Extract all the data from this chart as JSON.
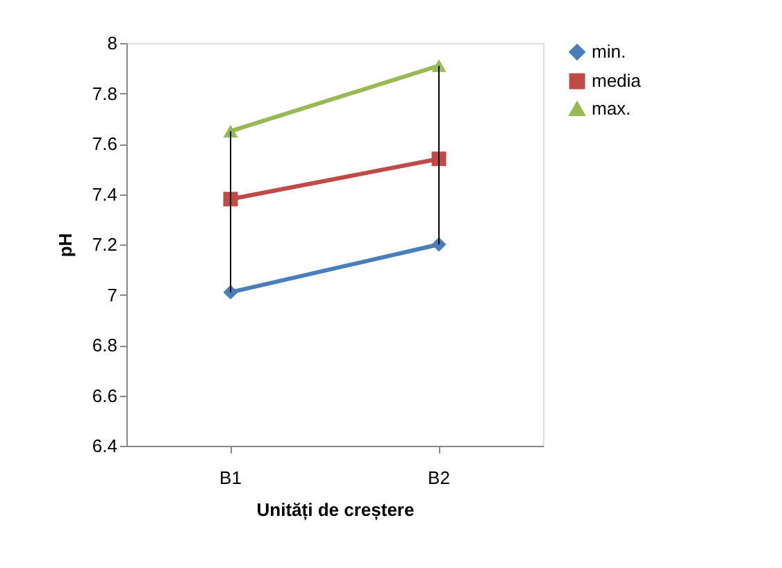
{
  "chart_data": {
    "type": "line",
    "xlabel": "Unități de creștere",
    "ylabel": "pH",
    "categories": [
      "B1",
      "B2"
    ],
    "series": [
      {
        "name": "min.",
        "color": "#4a7ebb",
        "marker": "diamond",
        "values": [
          7.01,
          7.2
        ]
      },
      {
        "name": "media",
        "color": "#be4b48",
        "marker": "square",
        "values": [
          7.38,
          7.54
        ],
        "errors": [
          [
            7.01,
            7.65
          ],
          [
            7.2,
            7.91
          ]
        ]
      },
      {
        "name": "max.",
        "color": "#98b954",
        "marker": "triangle",
        "values": [
          7.65,
          7.91
        ]
      }
    ],
    "ylim": [
      6.4,
      8
    ],
    "yticks": [
      6.4,
      6.6,
      6.8,
      7,
      7.2,
      7.4,
      7.6,
      7.8,
      8
    ],
    "grid": false,
    "legend": "right",
    "line_style": "solid"
  }
}
